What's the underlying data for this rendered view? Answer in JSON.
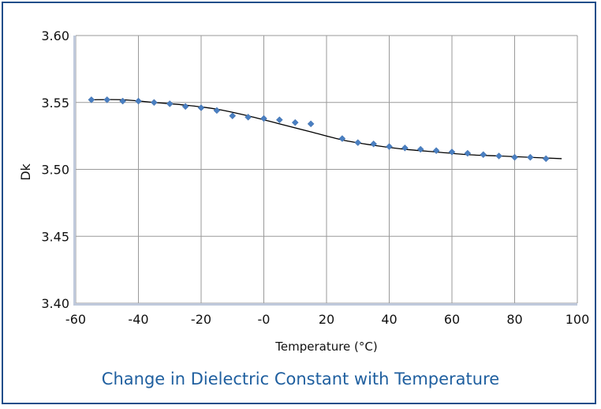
{
  "chart_data": {
    "type": "scatter",
    "title": "Change in Dielectric Constant with Temperature",
    "xlabel": "Temperature (°C)",
    "ylabel": "Dk",
    "xlim": [
      -60,
      100
    ],
    "ylim": [
      3.4,
      3.6
    ],
    "x_ticks": [
      -60,
      -40,
      -20,
      0,
      20,
      40,
      60,
      80,
      100
    ],
    "x_tick_labels": [
      "-60",
      "-40",
      "-20",
      "-0",
      "20",
      "40",
      "60",
      "80",
      "100"
    ],
    "y_ticks": [
      3.4,
      3.45,
      3.5,
      3.55,
      3.6
    ],
    "y_tick_labels": [
      "3.40",
      "3.45",
      "3.50",
      "3.55",
      "3.60"
    ],
    "grid": true,
    "legend": "none",
    "point_color": "#4a7fc1",
    "curve_color": "#000000",
    "series": [
      {
        "kind": "points",
        "x": [
          -55,
          -50,
          -45,
          -40,
          -35,
          -30,
          -25,
          -20,
          -15,
          -10,
          -5,
          0,
          5,
          10,
          15,
          25,
          30,
          35,
          40,
          45,
          50,
          55,
          60,
          65,
          70,
          75,
          80,
          85,
          90
        ],
        "values": [
          3.552,
          3.552,
          3.551,
          3.551,
          3.55,
          3.549,
          3.547,
          3.546,
          3.544,
          3.54,
          3.539,
          3.538,
          3.537,
          3.535,
          3.534,
          3.523,
          3.52,
          3.519,
          3.517,
          3.516,
          3.515,
          3.514,
          3.513,
          3.512,
          3.511,
          3.51,
          3.509,
          3.509,
          3.508
        ]
      },
      {
        "kind": "trend",
        "x": [
          -55,
          -45,
          -35,
          -25,
          -15,
          -5,
          5,
          15,
          25,
          35,
          45,
          55,
          65,
          75,
          85,
          95
        ],
        "values": [
          3.552,
          3.552,
          3.55,
          3.548,
          3.545,
          3.54,
          3.534,
          3.528,
          3.522,
          3.518,
          3.515,
          3.513,
          3.511,
          3.51,
          3.509,
          3.508
        ]
      }
    ]
  }
}
